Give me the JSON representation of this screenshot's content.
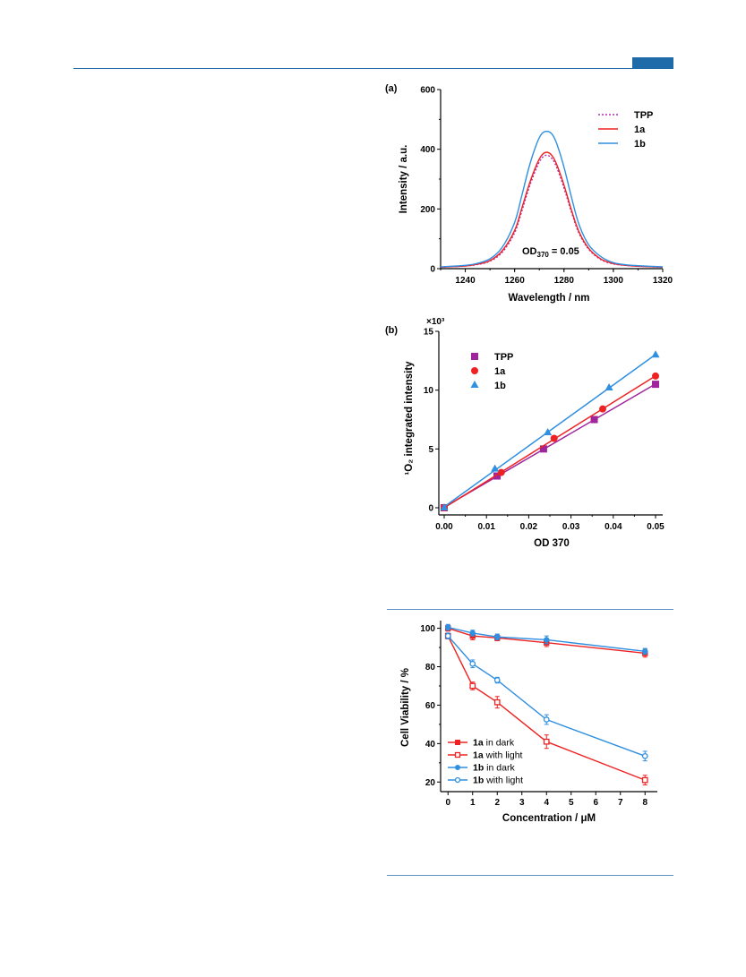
{
  "chart_data": [
    {
      "type": "line",
      "panel_label": "(a)",
      "xlabel": "Wavelength / nm",
      "ylabel": "Intensity / a.u.",
      "xlim": [
        1230,
        1320
      ],
      "ylim": [
        0,
        600
      ],
      "xticks": [
        "1240",
        "1260",
        "1280",
        "1300",
        "1320"
      ],
      "yticks": [
        "0",
        "200",
        "400",
        "600"
      ],
      "annotation": {
        "base": "OD",
        "sub": "370",
        "tail": " = 0.05"
      },
      "legend_position": "top-right",
      "series": [
        {
          "name": "TPP",
          "color": "#b02cb0",
          "style": "dotted",
          "x": [
            1230,
            1240,
            1245,
            1250,
            1255,
            1260,
            1263,
            1266,
            1269,
            1271,
            1273,
            1275,
            1277,
            1280,
            1283,
            1286,
            1290,
            1295,
            1300,
            1305,
            1310,
            1320
          ],
          "y": [
            5,
            9,
            14,
            25,
            55,
            120,
            195,
            275,
            340,
            370,
            380,
            370,
            340,
            270,
            190,
            120,
            65,
            30,
            16,
            11,
            8,
            5
          ]
        },
        {
          "name": "1a",
          "color": "#ee2222",
          "style": "solid",
          "x": [
            1230,
            1240,
            1245,
            1250,
            1255,
            1260,
            1263,
            1266,
            1269,
            1271,
            1273,
            1275,
            1277,
            1280,
            1283,
            1286,
            1290,
            1295,
            1300,
            1305,
            1310,
            1320
          ],
          "y": [
            5,
            9,
            15,
            27,
            60,
            128,
            205,
            285,
            350,
            380,
            390,
            380,
            350,
            280,
            197,
            125,
            68,
            32,
            17,
            11,
            8,
            5
          ]
        },
        {
          "name": "1b",
          "color": "#2f8fe0",
          "style": "solid",
          "x": [
            1230,
            1240,
            1245,
            1250,
            1255,
            1260,
            1263,
            1266,
            1269,
            1271,
            1273,
            1275,
            1277,
            1280,
            1283,
            1286,
            1290,
            1295,
            1300,
            1305,
            1310,
            1320
          ],
          "y": [
            6,
            11,
            18,
            33,
            72,
            155,
            248,
            345,
            420,
            452,
            460,
            452,
            420,
            340,
            240,
            150,
            80,
            40,
            20,
            13,
            10,
            6
          ]
        }
      ]
    },
    {
      "type": "scatter",
      "panel_label": "(b)",
      "multiplier": "×10³",
      "xlabel": "OD 370",
      "ylabel": "¹O₂ integrated intensity",
      "xlim": [
        0,
        0.05
      ],
      "ylim": [
        0,
        15
      ],
      "xticks": [
        "0.00",
        "0.01",
        "0.02",
        "0.03",
        "0.04",
        "0.05"
      ],
      "yticks": [
        "0",
        "5",
        "10",
        "15"
      ],
      "legend_position": "top-left",
      "series": [
        {
          "name": "TPP",
          "color": "#a0249c",
          "marker": "square",
          "x": [
            0.0,
            0.0125,
            0.0235,
            0.0355,
            0.05
          ],
          "y": [
            0.0,
            2.7,
            5.0,
            7.5,
            10.5
          ]
        },
        {
          "name": "1a",
          "color": "#ee2222",
          "marker": "circle",
          "x": [
            0.0,
            0.0135,
            0.026,
            0.0375,
            0.05
          ],
          "y": [
            0.0,
            3.0,
            5.9,
            8.4,
            11.2
          ]
        },
        {
          "name": "1b",
          "color": "#2f8fe0",
          "marker": "triangle",
          "x": [
            0.0,
            0.012,
            0.0245,
            0.039,
            0.05
          ],
          "y": [
            0.0,
            3.3,
            6.4,
            10.2,
            13.0
          ]
        }
      ]
    },
    {
      "type": "line",
      "xlabel": "Concentration / μM",
      "ylabel": "Cell Viability / %",
      "xlim": [
        -0.3,
        8.5
      ],
      "ylim": [
        15,
        104
      ],
      "xticks": [
        "0",
        "1",
        "2",
        "3",
        "4",
        "5",
        "6",
        "7",
        "8"
      ],
      "yticks": [
        "20",
        "40",
        "60",
        "80",
        "100"
      ],
      "legend_position": "bottom-left",
      "series": [
        {
          "name": "1a in dark",
          "label_bold": "1a",
          "label_rest": " in dark",
          "color": "#ee2222",
          "marker": "filled-square",
          "x": [
            0,
            1,
            2,
            4,
            8
          ],
          "y": [
            100,
            96,
            95,
            92.5,
            87
          ],
          "err": [
            1.5,
            2,
            1.5,
            2,
            2
          ]
        },
        {
          "name": "1a with light",
          "label_bold": "1a",
          "label_rest": " with light",
          "color": "#ee2222",
          "marker": "open-square",
          "x": [
            0,
            1,
            2,
            4,
            8
          ],
          "y": [
            96,
            70,
            61.5,
            41,
            21
          ],
          "err": [
            1.5,
            2,
            3,
            3.5,
            2.5
          ]
        },
        {
          "name": "1b in dark",
          "label_bold": "1b",
          "label_rest": " in dark",
          "color": "#2f8fe0",
          "marker": "filled-circle",
          "x": [
            0,
            1,
            2,
            4,
            8
          ],
          "y": [
            100.5,
            97.5,
            95.5,
            94,
            88
          ],
          "err": [
            1.5,
            1.5,
            1.5,
            2,
            1.5
          ]
        },
        {
          "name": "1b with light",
          "label_bold": "1b",
          "label_rest": " with light",
          "color": "#2f8fe0",
          "marker": "open-circle",
          "x": [
            0,
            1,
            2,
            4,
            8
          ],
          "y": [
            96,
            81.5,
            73,
            52.5,
            33.5
          ],
          "err": [
            1.5,
            2,
            1.5,
            2.5,
            2.5
          ]
        }
      ]
    }
  ]
}
